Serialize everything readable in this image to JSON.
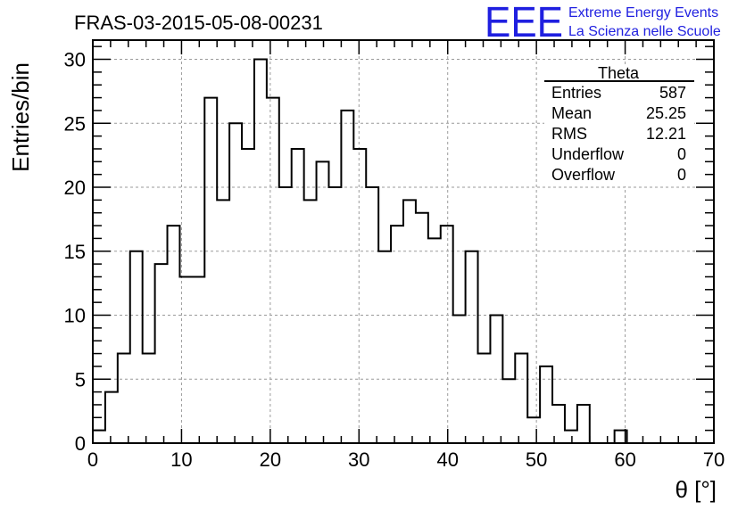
{
  "header": {
    "run_title": "FRAS-03-2015-05-08-00231",
    "logo_text": "EEE",
    "logo_line1": "Extreme Energy Events",
    "logo_line2": "La Scienza nelle Scuole",
    "logo_color": "#1f1fe0"
  },
  "stats_box": {
    "title": "Theta",
    "rows": [
      {
        "label": "Entries",
        "value": "587"
      },
      {
        "label": "Mean",
        "value": "25.25"
      },
      {
        "label": "RMS",
        "value": "12.21"
      },
      {
        "label": "Underflow",
        "value": "0"
      },
      {
        "label": "Overflow",
        "value": "0"
      }
    ]
  },
  "chart_data": {
    "type": "bar",
    "style": "step-histogram",
    "title": "FRAS-03-2015-05-08-00231",
    "xlabel": "θ [°]",
    "ylabel": "Entries/bin",
    "xlim": [
      0,
      70
    ],
    "ylim": [
      0,
      31.5
    ],
    "bin_width": 1.4,
    "grid": true,
    "x_ticks": [
      0,
      10,
      20,
      30,
      40,
      50,
      60,
      70
    ],
    "y_ticks": [
      0,
      5,
      10,
      15,
      20,
      25,
      30
    ],
    "values": [
      1,
      4,
      7,
      15,
      7,
      14,
      17,
      13,
      13,
      27,
      19,
      25,
      23,
      30,
      27,
      20,
      23,
      19,
      22,
      20,
      26,
      23,
      20,
      15,
      17,
      19,
      18,
      16,
      17,
      10,
      15,
      7,
      10,
      5,
      7,
      2,
      6,
      3,
      1,
      3,
      0,
      0,
      1,
      0,
      0,
      0,
      0,
      0,
      0,
      0
    ]
  }
}
